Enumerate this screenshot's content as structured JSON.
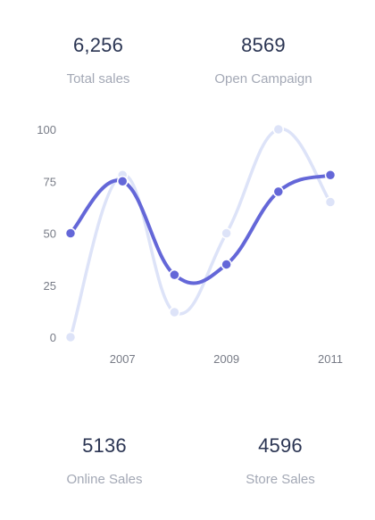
{
  "stats": {
    "total": {
      "value": "6,256",
      "label": "Total sales"
    },
    "open": {
      "value": "8569",
      "label": "Open Campaign"
    },
    "online": {
      "value": "5136",
      "label": "Online Sales"
    },
    "store": {
      "value": "4596",
      "label": "Store Sales"
    }
  },
  "colors": {
    "series_dark": "#6467d8",
    "series_light": "#dde3f8",
    "text_dark": "#2b3553",
    "text_muted": "#a3a8b5"
  },
  "chart_data": {
    "type": "line",
    "title": "",
    "xlabel": "",
    "ylabel": "",
    "x": [
      2006,
      2007,
      2008,
      2009,
      2010,
      2011
    ],
    "x_tick_labels": [
      "2007",
      "2009",
      "2011"
    ],
    "y_ticks": [
      "0",
      "25",
      "50",
      "75",
      "100"
    ],
    "ylim": [
      0,
      100
    ],
    "smooth": true,
    "grid": false,
    "series": [
      {
        "values": [
          0,
          78,
          12,
          50,
          100,
          65
        ],
        "color": "#dde3f8"
      },
      {
        "values": [
          50,
          75,
          30,
          35,
          70,
          78
        ],
        "color": "#6467d8"
      }
    ]
  }
}
